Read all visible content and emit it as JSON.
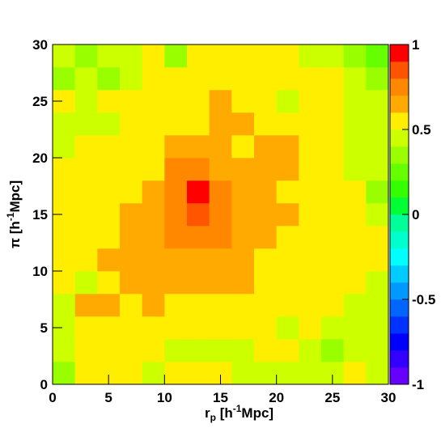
{
  "chart_data": {
    "type": "heatmap",
    "xlabel": [
      "r",
      "p",
      " [h",
      "-1",
      "Mpc]"
    ],
    "ylabel": [
      "π [h",
      "-1",
      "Mpc]"
    ],
    "xbins": [
      0,
      2,
      4,
      6,
      8,
      10,
      12,
      14,
      16,
      18,
      20,
      22,
      24,
      26,
      28,
      30
    ],
    "ybins": [
      0,
      2,
      4,
      6,
      8,
      10,
      12,
      14,
      16,
      18,
      20,
      22,
      24,
      26,
      28,
      30
    ],
    "xlim": [
      0,
      30
    ],
    "ylim": [
      0,
      30
    ],
    "xticks": [
      0,
      5,
      10,
      15,
      20,
      25,
      30
    ],
    "yticks": [
      0,
      5,
      10,
      15,
      20,
      25,
      30
    ],
    "zlim": [
      -1,
      1
    ],
    "zticks": [
      1,
      0.5,
      0,
      -0.5,
      -1
    ],
    "palette": [
      "#6600ff",
      "#3300ff",
      "#0000ff",
      "#0033ff",
      "#0066ff",
      "#0099ff",
      "#00ccff",
      "#00ffff",
      "#00ffcc",
      "#00ff99",
      "#00ff33",
      "#33ff00",
      "#66ff00",
      "#99ff00",
      "#ccff00",
      "#ffee00",
      "#ffaa00",
      "#ff8800",
      "#ff5500",
      "#ff0000"
    ],
    "z": [
      [
        0.35,
        0.55,
        0.55,
        0.55,
        0.45,
        0.55,
        0.55,
        0.55,
        0.45,
        0.45,
        0.45,
        0.45,
        0.45,
        0.55,
        0.42
      ],
      [
        0.45,
        0.55,
        0.55,
        0.55,
        0.55,
        0.48,
        0.48,
        0.48,
        0.48,
        0.5,
        0.52,
        0.45,
        0.38,
        0.4,
        0.45
      ],
      [
        0.45,
        0.55,
        0.55,
        0.55,
        0.55,
        0.55,
        0.55,
        0.55,
        0.55,
        0.52,
        0.4,
        0.55,
        0.45,
        0.42,
        0.4
      ],
      [
        0.45,
        0.65,
        0.65,
        0.55,
        0.65,
        0.55,
        0.55,
        0.55,
        0.55,
        0.55,
        0.55,
        0.55,
        0.52,
        0.45,
        0.45
      ],
      [
        0.55,
        0.45,
        0.55,
        0.65,
        0.65,
        0.65,
        0.65,
        0.65,
        0.65,
        0.55,
        0.55,
        0.55,
        0.55,
        0.52,
        0.45
      ],
      [
        0.55,
        0.55,
        0.65,
        0.65,
        0.65,
        0.65,
        0.65,
        0.65,
        0.65,
        0.55,
        0.55,
        0.55,
        0.55,
        0.55,
        0.52
      ],
      [
        0.58,
        0.55,
        0.55,
        0.65,
        0.65,
        0.75,
        0.75,
        0.75,
        0.65,
        0.65,
        0.55,
        0.55,
        0.55,
        0.55,
        0.5
      ],
      [
        0.55,
        0.55,
        0.55,
        0.65,
        0.65,
        0.75,
        0.85,
        0.75,
        0.65,
        0.65,
        0.65,
        0.55,
        0.55,
        0.55,
        0.45
      ],
      [
        0.55,
        0.55,
        0.55,
        0.55,
        0.65,
        0.75,
        0.95,
        0.75,
        0.65,
        0.65,
        0.55,
        0.55,
        0.55,
        0.5,
        0.35
      ],
      [
        0.55,
        0.55,
        0.56,
        0.52,
        0.55,
        0.75,
        0.75,
        0.65,
        0.65,
        0.65,
        0.65,
        0.55,
        0.55,
        0.45,
        0.45
      ],
      [
        0.45,
        0.52,
        0.55,
        0.55,
        0.55,
        0.65,
        0.65,
        0.65,
        0.55,
        0.65,
        0.65,
        0.55,
        0.55,
        0.45,
        0.45
      ],
      [
        0.42,
        0.42,
        0.45,
        0.55,
        0.55,
        0.56,
        0.57,
        0.65,
        0.65,
        0.56,
        0.55,
        0.55,
        0.55,
        0.45,
        0.45
      ],
      [
        0.55,
        0.45,
        0.55,
        0.55,
        0.55,
        0.56,
        0.57,
        0.65,
        0.55,
        0.55,
        0.45,
        0.55,
        0.55,
        0.45,
        0.42
      ],
      [
        0.33,
        0.44,
        0.3,
        0.42,
        0.55,
        0.56,
        0.57,
        0.56,
        0.55,
        0.54,
        0.53,
        0.52,
        0.51,
        0.42,
        0.38
      ],
      [
        0.42,
        0.32,
        0.42,
        0.42,
        0.55,
        0.38,
        0.55,
        0.55,
        0.55,
        0.55,
        0.52,
        0.45,
        0.45,
        0.35,
        0.22
      ]
    ]
  }
}
